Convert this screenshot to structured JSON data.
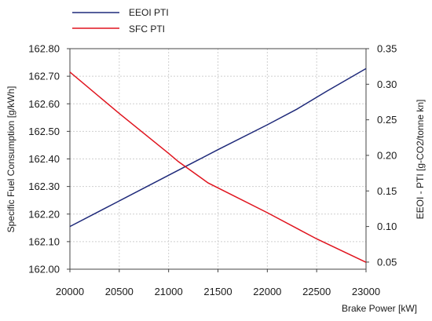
{
  "chart_data": {
    "type": "line",
    "title": "",
    "xlabel": "Brake Power [kW]",
    "ylabel": "Specific Fuel Consumption [g/kWh]",
    "y2label": "EEOI - PTI [g-CO2/tonne kn]",
    "xlim": [
      20000,
      23000
    ],
    "ylim": [
      162.0,
      162.8
    ],
    "y2lim": [
      0.04,
      0.35
    ],
    "grid": true,
    "legend_position": "top",
    "x_ticks": [
      20000,
      20500,
      21000,
      21500,
      22000,
      22500,
      23000
    ],
    "y_ticks": [
      "162.00",
      "162.10",
      "162.20",
      "162.30",
      "162.40",
      "162.50",
      "162.60",
      "162.70",
      "162.80"
    ],
    "y2_ticks": [
      "0.05",
      "0.10",
      "0.15",
      "0.20",
      "0.25",
      "0.30",
      "0.35"
    ],
    "series": [
      {
        "name": "EEOI PTI",
        "axis": "right",
        "color": "#1f2a7a",
        "x": [
          20000,
          20500,
          21000,
          21500,
          22000,
          22300,
          22600,
          23000
        ],
        "values": [
          0.1,
          0.136,
          0.172,
          0.208,
          0.243,
          0.265,
          0.29,
          0.322
        ]
      },
      {
        "name": "SFC PTI",
        "axis": "left",
        "color": "#e0141e",
        "x": [
          20000,
          20500,
          21000,
          21100,
          21400,
          22000,
          22500,
          23000
        ],
        "values": [
          162.715,
          162.565,
          162.42,
          162.39,
          162.313,
          162.205,
          162.11,
          162.025
        ]
      }
    ]
  }
}
